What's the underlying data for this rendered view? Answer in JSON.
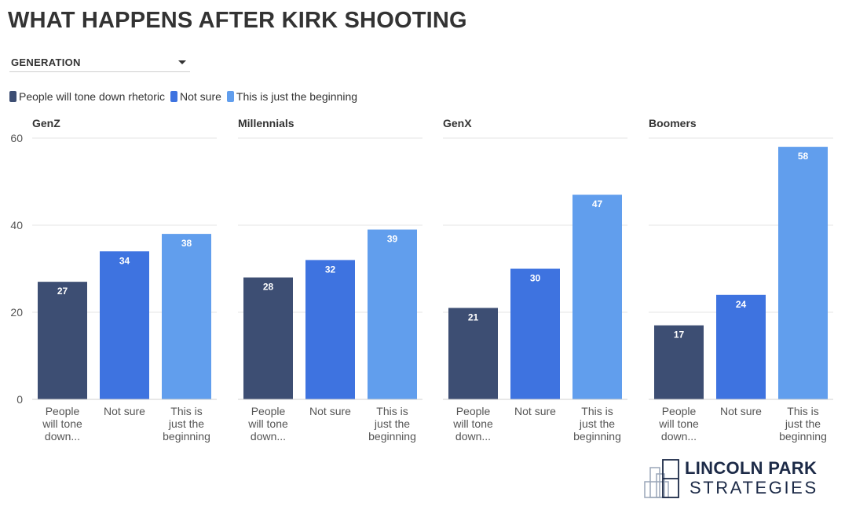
{
  "title": "WHAT HAPPENS AFTER KIRK SHOOTING",
  "filter": {
    "label": "GENERATION"
  },
  "legend": [
    {
      "label": "People will tone down rhetoric",
      "color": "#3d4e73"
    },
    {
      "label": "Not sure",
      "color": "#3e73e0"
    },
    {
      "label": "This is just the beginning",
      "color": "#619eed"
    }
  ],
  "logo": {
    "line1": "LINCOLN PARK",
    "line2": "STRATEGIES"
  },
  "chart_data": {
    "type": "bar",
    "layout": "small-multiples",
    "ylim": [
      0,
      60
    ],
    "yticks": [
      0,
      20,
      40,
      60
    ],
    "grid": true,
    "legend_position": "top-left",
    "category_labels": [
      [
        "People",
        "will tone",
        "down..."
      ],
      [
        "Not sure"
      ],
      [
        "This is",
        "just the",
        "beginning"
      ]
    ],
    "series_names": [
      "People will tone down rhetoric",
      "Not sure",
      "This is just the beginning"
    ],
    "colors": [
      "#3d4e73",
      "#3e73e0",
      "#619eed"
    ],
    "panels": [
      {
        "title": "GenZ",
        "values": [
          27,
          34,
          38
        ]
      },
      {
        "title": "Millennials",
        "values": [
          28,
          32,
          39
        ]
      },
      {
        "title": "GenX",
        "values": [
          21,
          30,
          47
        ]
      },
      {
        "title": "Boomers",
        "values": [
          17,
          24,
          58
        ]
      }
    ]
  }
}
